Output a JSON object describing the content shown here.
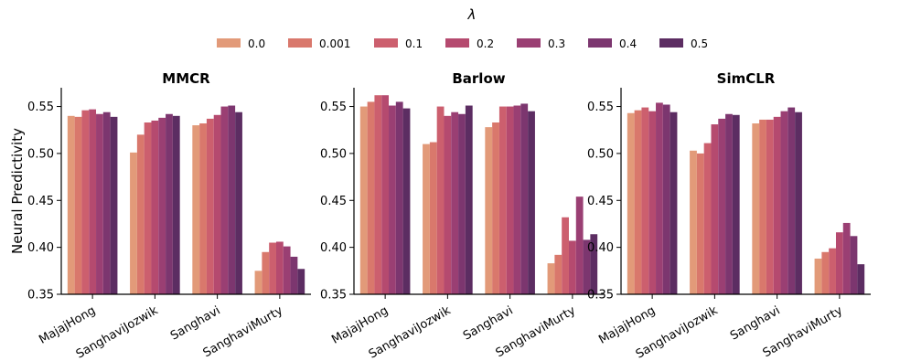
{
  "legend": {
    "title": "λ",
    "placement": "top-center",
    "entries": [
      "0.0",
      "0.001",
      "0.1",
      "0.2",
      "0.3",
      "0.4",
      "0.5"
    ]
  },
  "colors": [
    "#e29a79",
    "#d9786c",
    "#cc5f6e",
    "#b54a6f",
    "#9a3f73",
    "#7c366f",
    "#5c2d62"
  ],
  "ylabel": "Neural Predictivity",
  "chart_data": [
    {
      "type": "bar",
      "title": "MMCR",
      "categories": [
        "MajajHong",
        "SanghaviJozwik",
        "Sanghavi",
        "SanghaviMurty"
      ],
      "ylim": [
        0.35,
        0.57
      ],
      "yticks": [
        "0.35",
        "0.40",
        "0.45",
        "0.50",
        "0.55"
      ],
      "grid": false,
      "series": [
        {
          "name": "0.0",
          "values": [
            0.54,
            0.501,
            0.53,
            0.375
          ]
        },
        {
          "name": "0.001",
          "values": [
            0.539,
            0.52,
            0.532,
            0.395
          ]
        },
        {
          "name": "0.1",
          "values": [
            0.546,
            0.533,
            0.537,
            0.405
          ]
        },
        {
          "name": "0.2",
          "values": [
            0.547,
            0.535,
            0.541,
            0.406
          ]
        },
        {
          "name": "0.3",
          "values": [
            0.542,
            0.538,
            0.55,
            0.401
          ]
        },
        {
          "name": "0.4",
          "values": [
            0.544,
            0.542,
            0.551,
            0.39
          ]
        },
        {
          "name": "0.5",
          "values": [
            0.539,
            0.54,
            0.544,
            0.377
          ]
        }
      ]
    },
    {
      "type": "bar",
      "title": "Barlow",
      "categories": [
        "MajajHong",
        "SanghaviJozwik",
        "Sanghavi",
        "SanghaviMurty"
      ],
      "ylim": [
        0.35,
        0.57
      ],
      "yticks": [
        "0.35",
        "0.40",
        "0.45",
        "0.50",
        "0.55"
      ],
      "grid": false,
      "series": [
        {
          "name": "0.0",
          "values": [
            0.55,
            0.51,
            0.528,
            0.383
          ]
        },
        {
          "name": "0.001",
          "values": [
            0.555,
            0.512,
            0.533,
            0.392
          ]
        },
        {
          "name": "0.1",
          "values": [
            0.562,
            0.55,
            0.55,
            0.432
          ]
        },
        {
          "name": "0.2",
          "values": [
            0.562,
            0.54,
            0.55,
            0.407
          ]
        },
        {
          "name": "0.3",
          "values": [
            0.551,
            0.544,
            0.551,
            0.454
          ]
        },
        {
          "name": "0.4",
          "values": [
            0.555,
            0.542,
            0.553,
            0.408
          ]
        },
        {
          "name": "0.5",
          "values": [
            0.548,
            0.551,
            0.545,
            0.414
          ]
        }
      ]
    },
    {
      "type": "bar",
      "title": "SimCLR",
      "categories": [
        "MajajHong",
        "SanghaviJozwik",
        "Sanghavi",
        "SanghaviMurty"
      ],
      "ylim": [
        0.35,
        0.57
      ],
      "yticks": [
        "0.35",
        "0.40",
        "0.45",
        "0.50",
        "0.55"
      ],
      "grid": false,
      "series": [
        {
          "name": "0.0",
          "values": [
            0.543,
            0.503,
            0.532,
            0.388
          ]
        },
        {
          "name": "0.001",
          "values": [
            0.546,
            0.5,
            0.536,
            0.395
          ]
        },
        {
          "name": "0.1",
          "values": [
            0.549,
            0.511,
            0.536,
            0.399
          ]
        },
        {
          "name": "0.2",
          "values": [
            0.545,
            0.531,
            0.539,
            0.416
          ]
        },
        {
          "name": "0.3",
          "values": [
            0.554,
            0.537,
            0.545,
            0.426
          ]
        },
        {
          "name": "0.4",
          "values": [
            0.552,
            0.542,
            0.549,
            0.412
          ]
        },
        {
          "name": "0.5",
          "values": [
            0.544,
            0.541,
            0.544,
            0.382
          ]
        }
      ]
    }
  ]
}
